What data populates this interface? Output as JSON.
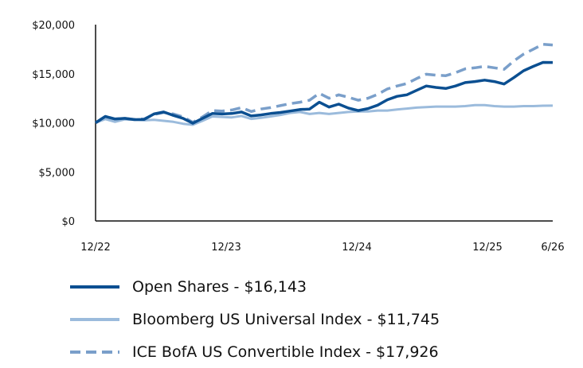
{
  "chart_data": {
    "type": "line",
    "title": "",
    "xlabel": "",
    "ylabel": "",
    "ylim": [
      0,
      20000
    ],
    "y_ticks": [
      0,
      5000,
      10000,
      15000,
      20000
    ],
    "y_tick_labels": [
      "$0",
      "$5,000",
      "$10,000",
      "$15,000",
      "$20,000"
    ],
    "x_ticks": [
      0,
      12,
      24,
      36,
      42
    ],
    "x_tick_labels": [
      "12/22",
      "12/23",
      "12/24",
      "12/25",
      "6/26"
    ],
    "x_range": [
      0,
      42
    ],
    "x_unit_note": "months",
    "grid": false,
    "legend_position": "bottom",
    "series": [
      {
        "name": "Open Shares - $16,143",
        "color": "#0b4f91",
        "style": "solid",
        "values": [
          10000,
          10650,
          10380,
          10450,
          10320,
          10350,
          10900,
          11100,
          10750,
          10450,
          9950,
          10450,
          10950,
          10900,
          10950,
          11100,
          10700,
          10800,
          10950,
          11050,
          11200,
          11350,
          11400,
          12100,
          11600,
          11900,
          11500,
          11250,
          11450,
          11800,
          12350,
          12700,
          12850,
          13300,
          13750,
          13600,
          13500,
          13750,
          14100,
          14200,
          14350,
          14200,
          13950,
          14600,
          15300,
          15750,
          16150,
          16143
        ]
      },
      {
        "name": "Bloomberg US Universal Index - $11,745",
        "color": "#9bbbdc",
        "style": "solid",
        "values": [
          10000,
          10380,
          10100,
          10350,
          10300,
          10250,
          10300,
          10200,
          10100,
          9900,
          9800,
          10200,
          10650,
          10600,
          10550,
          10700,
          10400,
          10500,
          10650,
          10800,
          11000,
          11100,
          10900,
          11000,
          10900,
          11000,
          11100,
          11150,
          11150,
          11250,
          11250,
          11350,
          11450,
          11550,
          11600,
          11650,
          11650,
          11650,
          11700,
          11800,
          11800,
          11700,
          11650,
          11650,
          11700,
          11700,
          11740,
          11745
        ]
      },
      {
        "name": "ICE BofA US Convertible Index - $17,926",
        "color": "#7a9fca",
        "style": "dashed",
        "values": [
          10000,
          10650,
          10400,
          10450,
          10350,
          10400,
          10850,
          11050,
          10900,
          10600,
          10050,
          10600,
          11250,
          11200,
          11300,
          11550,
          11150,
          11400,
          11550,
          11750,
          11950,
          12100,
          12300,
          13000,
          12500,
          12850,
          12600,
          12300,
          12500,
          12900,
          13450,
          13750,
          14000,
          14500,
          14950,
          14850,
          14800,
          15100,
          15500,
          15600,
          15750,
          15600,
          15450,
          16300,
          17000,
          17500,
          18000,
          17926
        ]
      }
    ]
  }
}
